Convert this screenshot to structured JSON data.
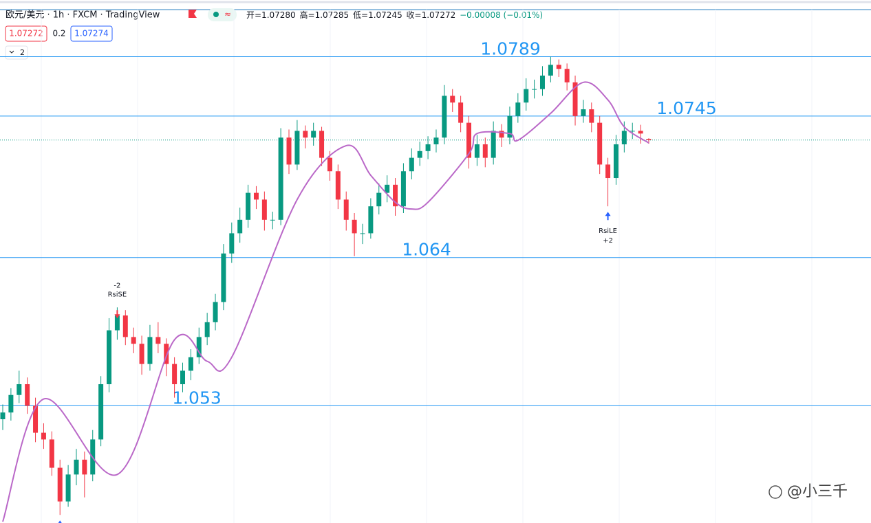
{
  "chart_data": {
    "type": "candlestick",
    "title": "欧元/美元 · 1h · FXCM · TradingView",
    "legend": [
      "开=1.07280",
      "高=1.07285",
      "低=1.07245",
      "收=1.07272",
      "−0.00008 (−0.01%)"
    ],
    "quote_boxes": [
      "1.07272",
      "0.2",
      "1.07274"
    ],
    "indicator_count": "2",
    "watermark": "@小三千",
    "ylim": [
      1.0443,
      1.0826
    ],
    "up_color": "#089981",
    "down_color": "#f23645",
    "levels": [
      1.0789,
      1.0745,
      1.064,
      1.053
    ],
    "level_color": "#2196f3",
    "last_price": 1.07272,
    "annotations": [
      "-2",
      "RsiSE",
      "RsiLE",
      "+2"
    ],
    "candles": [
      [
        1.052,
        1.0531,
        1.0512,
        1.0525
      ],
      [
        1.0525,
        1.0543,
        1.0519,
        1.0538
      ],
      [
        1.0538,
        1.0556,
        1.0532,
        1.0546
      ],
      [
        1.0546,
        1.0551,
        1.0524,
        1.053
      ],
      [
        1.053,
        1.0536,
        1.0503,
        1.051
      ],
      [
        1.051,
        1.0517,
        1.0498,
        1.0505
      ],
      [
        1.0505,
        1.0511,
        1.0478,
        1.0484
      ],
      [
        1.0484,
        1.049,
        1.0449,
        1.0459
      ],
      [
        1.0459,
        1.0486,
        1.0455,
        1.0479
      ],
      [
        1.0479,
        1.0498,
        1.0471,
        1.049
      ],
      [
        1.049,
        1.0496,
        1.0462,
        1.0479
      ],
      [
        1.0479,
        1.0512,
        1.0474,
        1.0505
      ],
      [
        1.0505,
        1.0552,
        1.05,
        1.0546
      ],
      [
        1.0546,
        1.0595,
        1.054,
        1.0586
      ],
      [
        1.0586,
        1.0603,
        1.0579,
        1.0597
      ],
      [
        1.0597,
        1.0601,
        1.0575,
        1.0581
      ],
      [
        1.0581,
        1.0588,
        1.0569,
        1.0576
      ],
      [
        1.0576,
        1.0582,
        1.0553,
        1.0561
      ],
      [
        1.0561,
        1.059,
        1.0556,
        1.0581
      ],
      [
        1.0581,
        1.0592,
        1.0569,
        1.0576
      ],
      [
        1.0576,
        1.058,
        1.0552,
        1.0561
      ],
      [
        1.0561,
        1.0566,
        1.0536,
        1.0546
      ],
      [
        1.0546,
        1.0562,
        1.054,
        1.0556
      ],
      [
        1.0556,
        1.0572,
        1.0549,
        1.0566
      ],
      [
        1.0566,
        1.0588,
        1.0561,
        1.0581
      ],
      [
        1.0581,
        1.0599,
        1.0575,
        1.0592
      ],
      [
        1.0592,
        1.0613,
        1.0586,
        1.0607
      ],
      [
        1.0607,
        1.065,
        1.0601,
        1.0643
      ],
      [
        1.0643,
        1.0666,
        1.0636,
        1.0658
      ],
      [
        1.0658,
        1.0677,
        1.0651,
        1.0668
      ],
      [
        1.0668,
        1.0694,
        1.0662,
        1.0688
      ],
      [
        1.0688,
        1.0693,
        1.0676,
        1.0683
      ],
      [
        1.0683,
        1.0689,
        1.066,
        1.0668
      ],
      [
        1.0668,
        1.0674,
        1.0661,
        1.0668
      ],
      [
        1.0668,
        1.0736,
        1.0664,
        1.0729
      ],
      [
        1.0729,
        1.0735,
        1.0702,
        1.0709
      ],
      [
        1.0709,
        1.0742,
        1.0705,
        1.0734
      ],
      [
        1.0734,
        1.0738,
        1.0721,
        1.0729
      ],
      [
        1.0729,
        1.074,
        1.0723,
        1.0734
      ],
      [
        1.0734,
        1.0737,
        1.0708,
        1.0714
      ],
      [
        1.0714,
        1.0719,
        1.0697,
        1.0704
      ],
      [
        1.0704,
        1.0709,
        1.0676,
        1.0683
      ],
      [
        1.0683,
        1.0689,
        1.066,
        1.0668
      ],
      [
        1.0668,
        1.0673,
        1.0641,
        1.0658
      ],
      [
        1.0658,
        1.0665,
        1.065,
        1.0658
      ],
      [
        1.0658,
        1.0684,
        1.0654,
        1.0678
      ],
      [
        1.0678,
        1.0695,
        1.0672,
        1.0688
      ],
      [
        1.0688,
        1.0701,
        1.0681,
        1.0694
      ],
      [
        1.0694,
        1.0699,
        1.0671,
        1.0678
      ],
      [
        1.0678,
        1.071,
        1.0673,
        1.0704
      ],
      [
        1.0704,
        1.0721,
        1.0698,
        1.0714
      ],
      [
        1.0714,
        1.0726,
        1.0708,
        1.0719
      ],
      [
        1.0719,
        1.073,
        1.0713,
        1.0724
      ],
      [
        1.0724,
        1.0735,
        1.0718,
        1.0729
      ],
      [
        1.0729,
        1.0768,
        1.0724,
        1.076
      ],
      [
        1.076,
        1.0765,
        1.0748,
        1.0755
      ],
      [
        1.0755,
        1.076,
        1.0733,
        1.074
      ],
      [
        1.074,
        1.0745,
        1.0706,
        1.0714
      ],
      [
        1.0714,
        1.0731,
        1.0708,
        1.0724
      ],
      [
        1.0724,
        1.0729,
        1.0707,
        1.0714
      ],
      [
        1.0714,
        1.0741,
        1.0709,
        1.0734
      ],
      [
        1.0734,
        1.0739,
        1.0722,
        1.0729
      ],
      [
        1.0729,
        1.0752,
        1.0724,
        1.0745
      ],
      [
        1.0745,
        1.0762,
        1.074,
        1.0755
      ],
      [
        1.0755,
        1.0773,
        1.0749,
        1.0765
      ],
      [
        1.0765,
        1.0772,
        1.0758,
        1.0765
      ],
      [
        1.0765,
        1.0782,
        1.076,
        1.0775
      ],
      [
        1.0775,
        1.0789,
        1.077,
        1.0783
      ],
      [
        1.0783,
        1.0787,
        1.0774,
        1.078
      ],
      [
        1.078,
        1.0784,
        1.0764,
        1.077
      ],
      [
        1.077,
        1.0775,
        1.0738,
        1.0745
      ],
      [
        1.0745,
        1.0757,
        1.074,
        1.075
      ],
      [
        1.075,
        1.0755,
        1.0733,
        1.074
      ],
      [
        1.074,
        1.0745,
        1.0702,
        1.0709
      ],
      [
        1.0709,
        1.0714,
        1.0678,
        1.0699
      ],
      [
        1.0699,
        1.0731,
        1.0694,
        1.0724
      ],
      [
        1.0724,
        1.0741,
        1.0718,
        1.0734
      ],
      [
        1.0734,
        1.074,
        1.0728,
        1.0734
      ],
      [
        1.0734,
        1.07385,
        1.07245,
        1.0732
      ],
      [
        1.0728,
        1.07285,
        1.07245,
        1.07272
      ]
    ],
    "ma": {
      "color": "#ba68c8",
      "x": [
        0,
        5,
        14,
        21,
        25,
        28,
        36,
        42,
        45,
        48,
        50,
        52,
        57,
        58,
        62,
        63,
        67,
        71,
        74,
        76,
        79
      ],
      "values": [
        1.0444,
        1.0535,
        1.0479,
        1.0579,
        1.0563,
        1.0566,
        1.0683,
        1.0723,
        1.0701,
        1.0681,
        1.0676,
        1.0681,
        1.0717,
        1.0732,
        1.0732,
        1.0727,
        1.0747,
        1.077,
        1.0757,
        1.0737,
        1.0725
      ]
    }
  }
}
